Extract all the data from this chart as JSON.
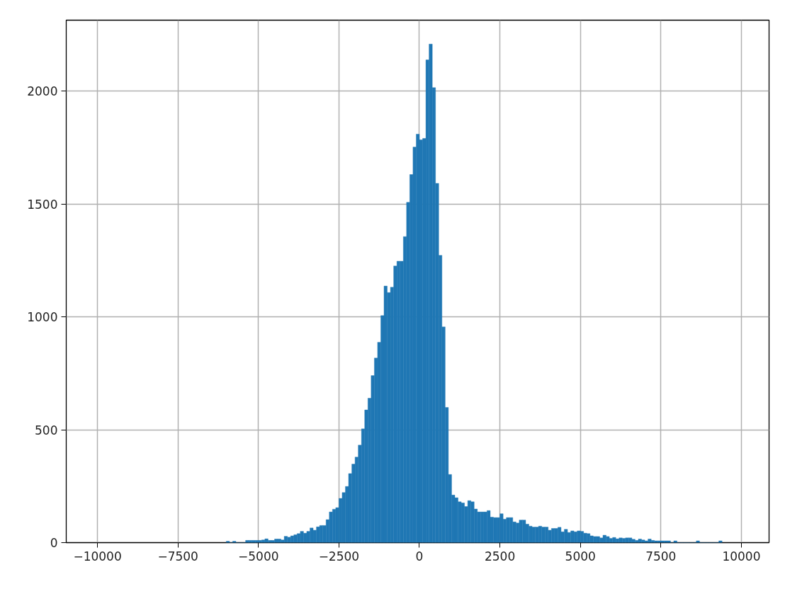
{
  "chart_data": {
    "type": "histogram",
    "color": "#1f77b4",
    "bins": [
      -6000,
      -5900,
      -5800,
      -5700,
      -5600,
      -5500,
      -5400,
      -5300,
      -5200,
      -5100,
      -5000,
      -4900,
      -4800,
      -4700,
      -4600,
      -4500,
      -4400,
      -4300,
      -4200,
      -4100,
      -4000,
      -3900,
      -3800,
      -3700,
      -3600,
      -3500,
      -3400,
      -3300,
      -3200,
      -3100,
      -3000,
      -2900,
      -2800,
      -2700,
      -2600,
      -2500,
      -2400,
      -2300,
      -2200,
      -2100,
      -2000,
      -1900,
      -1800,
      -1700,
      -1600,
      -1500,
      -1400,
      -1300,
      -1200,
      -1100,
      -1000,
      -900,
      -800,
      -700,
      -600,
      -500,
      -400,
      -300,
      -200,
      -100,
      0,
      100,
      200,
      300,
      400,
      500,
      600,
      700,
      800,
      900,
      1000,
      1100,
      1200,
      1300,
      1400,
      1500,
      1600,
      1700,
      1800,
      1900,
      2000,
      2100,
      2200,
      2300,
      2400,
      2500,
      2600,
      2700,
      2800,
      2900,
      3000,
      3100,
      3200,
      3300,
      3400,
      3500,
      3600,
      3700,
      3800,
      3900,
      4000,
      4100,
      4200,
      4300,
      4400,
      4500,
      4600,
      4700,
      4800,
      4900,
      5000,
      5100,
      5200,
      5300,
      5400,
      5500,
      5600,
      5700,
      5800,
      5900,
      6000,
      6100,
      6200,
      6300,
      6400,
      6500,
      6600,
      6700,
      6800,
      6900,
      7000,
      7100,
      7200,
      7300,
      7400,
      7500,
      7600,
      7700,
      7800,
      7900,
      8000,
      8100,
      8200,
      8300,
      8400,
      8500,
      8600,
      8700,
      8800,
      8900,
      9000,
      9100,
      9200,
      9300,
      9400
    ],
    "values": [
      6,
      0,
      6,
      0,
      0,
      0,
      10,
      10,
      10,
      10,
      10,
      12,
      17,
      10,
      10,
      16,
      16,
      12,
      28,
      24,
      30,
      35,
      40,
      50,
      42,
      50,
      65,
      55,
      70,
      76,
      76,
      102,
      136,
      148,
      155,
      196,
      222,
      249,
      306,
      348,
      379,
      432,
      504,
      588,
      640,
      740,
      818,
      888,
      1006,
      1137,
      1108,
      1132,
      1226,
      1247,
      1247,
      1356,
      1508,
      1631,
      1753,
      1810,
      1785,
      1791,
      2139,
      2209,
      2016,
      1592,
      1273,
      956,
      599,
      302,
      211,
      199,
      181,
      176,
      160,
      186,
      181,
      149,
      136,
      136,
      136,
      142,
      113,
      111,
      111,
      128,
      104,
      111,
      111,
      92,
      87,
      100,
      100,
      82,
      73,
      69,
      69,
      73,
      69,
      69,
      55,
      63,
      63,
      68,
      48,
      59,
      45,
      52,
      48,
      52,
      50,
      42,
      40,
      30,
      27,
      27,
      21,
      33,
      27,
      19,
      23,
      17,
      21,
      19,
      21,
      21,
      15,
      10,
      16,
      12,
      8,
      16,
      10,
      8,
      8,
      8,
      8,
      8,
      0,
      8,
      0,
      0,
      0,
      0,
      0,
      0,
      8,
      0,
      0,
      0,
      0,
      0,
      0,
      8
    ],
    "xlim": [
      -10970,
      10860
    ],
    "ylim": [
      0,
      2315
    ],
    "xticks": [
      {
        "value": -10000,
        "label": "−10000"
      },
      {
        "value": -7500,
        "label": "−7500"
      },
      {
        "value": -5000,
        "label": "−5000"
      },
      {
        "value": -2500,
        "label": "−2500"
      },
      0,
      2500,
      5000,
      7500,
      10000
    ],
    "yticks": [
      0,
      500,
      1000,
      1500,
      2000
    ],
    "grid": true
  }
}
